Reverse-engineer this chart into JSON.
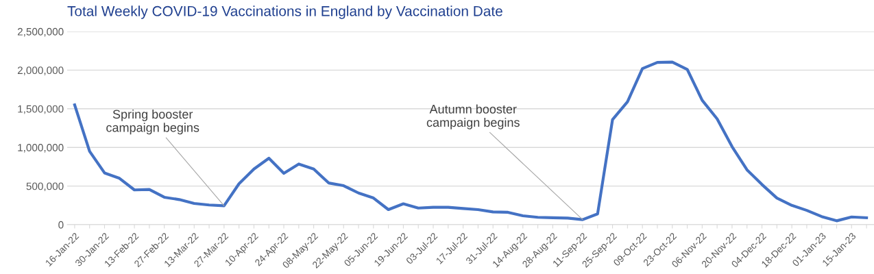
{
  "chart_data": {
    "type": "line",
    "title": "Total Weekly COVID-19 Vaccinations in England by Vaccination Date",
    "categories": [
      "16-Jan-22",
      null,
      "30-Jan-22",
      null,
      "13-Feb-22",
      null,
      "27-Feb-22",
      null,
      "13-Mar-22",
      null,
      "27-Mar-22",
      null,
      "10-Apr-22",
      null,
      "24-Apr-22",
      null,
      "08-May-22",
      null,
      "22-May-22",
      null,
      "05-Jun-22",
      null,
      "19-Jun-22",
      null,
      "03-Jul-22",
      null,
      "17-Jul-22",
      null,
      "31-Jul-22",
      null,
      "14-Aug-22",
      null,
      "28-Aug-22",
      null,
      "11-Sep-22",
      null,
      "25-Sep-22",
      null,
      "09-Oct-22",
      null,
      "23-Oct-22",
      null,
      "06-Nov-22",
      null,
      "20-Nov-22",
      null,
      "04-Dec-22",
      null,
      "18-Dec-22",
      null,
      "01-Jan-23",
      null,
      "15-Jan-23",
      null
    ],
    "series": [
      {
        "color": "#4472c4",
        "values": [
          1550000,
          950000,
          670000,
          600000,
          450000,
          455000,
          355000,
          325000,
          275000,
          255000,
          245000,
          530000,
          720000,
          860000,
          665000,
          785000,
          720000,
          540000,
          505000,
          410000,
          345000,
          195000,
          270000,
          215000,
          225000,
          225000,
          210000,
          195000,
          165000,
          160000,
          115000,
          95000,
          90000,
          85000,
          65000,
          140000,
          1360000,
          1590000,
          2020000,
          2100000,
          2105000,
          2010000,
          1610000,
          1370000,
          1010000,
          710000,
          520000,
          345000,
          250000,
          185000,
          105000,
          50000,
          100000,
          90000
        ]
      }
    ],
    "ylim": [
      0,
      2500000
    ],
    "yticks": [
      {
        "value": 0,
        "label": "0"
      },
      {
        "value": 500000,
        "label": "500,000"
      },
      {
        "value": 1000000,
        "label": "1,000,000"
      },
      {
        "value": 1500000,
        "label": "1,500,000"
      },
      {
        "value": 2000000,
        "label": "2,000,000"
      },
      {
        "value": 2500000,
        "label": "2,500,000"
      }
    ],
    "grid": "y",
    "legend": false,
    "marker": "none",
    "line_style": "solid",
    "annotations": [
      {
        "text": "Spring booster\ncampaign begins",
        "x": "27-Mar-22",
        "y": 245000
      },
      {
        "text": "Autumn booster\ncampaign begins",
        "x": "11-Sep-22",
        "y": 65000
      }
    ]
  }
}
